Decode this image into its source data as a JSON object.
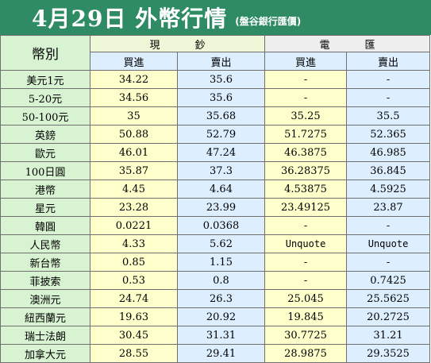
{
  "header": {
    "title": "4月29日 外幣行情",
    "subtitle": "(盤谷銀行匯價)"
  },
  "table": {
    "corner_label": "幣別",
    "groups": [
      "現鈔",
      "電匯"
    ],
    "subheaders": [
      "買進",
      "賣出",
      "買進",
      "賣出"
    ],
    "rows": [
      {
        "name": "美元1元",
        "values": [
          "34.22",
          "35.6",
          "-",
          "-"
        ]
      },
      {
        "name": "5-20元",
        "values": [
          "34.56",
          "35.6",
          "-",
          "-"
        ]
      },
      {
        "name": "50-100元",
        "values": [
          "35",
          "35.68",
          "35.25",
          "35.5"
        ]
      },
      {
        "name": "英鎊",
        "values": [
          "50.88",
          "52.79",
          "51.7275",
          "52.365"
        ]
      },
      {
        "name": "歐元",
        "values": [
          "46.01",
          "47.24",
          "46.3875",
          "46.985"
        ]
      },
      {
        "name": "100日圓",
        "values": [
          "35.87",
          "37.3",
          "36.28375",
          "36.845"
        ]
      },
      {
        "name": "港幣",
        "values": [
          "4.45",
          "4.64",
          "4.53875",
          "4.5925"
        ]
      },
      {
        "name": "星元",
        "values": [
          "23.28",
          "23.99",
          "23.49125",
          "23.87"
        ]
      },
      {
        "name": "韓圓",
        "values": [
          "0.0221",
          "0.0368",
          "-",
          "-"
        ]
      },
      {
        "name": "人民幣",
        "values": [
          "4.33",
          "5.62",
          "Unquote",
          "Unquote"
        ]
      },
      {
        "name": "新台幣",
        "values": [
          "0.85",
          "1.15",
          "-",
          "-"
        ]
      },
      {
        "name": "菲披索",
        "values": [
          "0.53",
          "0.8",
          "-",
          "0.7425"
        ]
      },
      {
        "name": "澳洲元",
        "values": [
          "24.74",
          "26.3",
          "25.045",
          "25.5625"
        ]
      },
      {
        "name": "紐西蘭元",
        "values": [
          "19.63",
          "20.92",
          "19.845",
          "20.2725"
        ]
      },
      {
        "name": "瑞士法朗",
        "values": [
          "30.45",
          "31.31",
          "30.7725",
          "31.21"
        ]
      },
      {
        "name": "加拿大元",
        "values": [
          "28.55",
          "29.41",
          "28.9875",
          "29.3525"
        ]
      }
    ]
  },
  "colors": {
    "header_bg": "#2e8b64",
    "name_col_bg": "#d8f3d2",
    "yellow_col_bg": "#ffffcc",
    "blue_col_bg": "#ddeeff"
  }
}
